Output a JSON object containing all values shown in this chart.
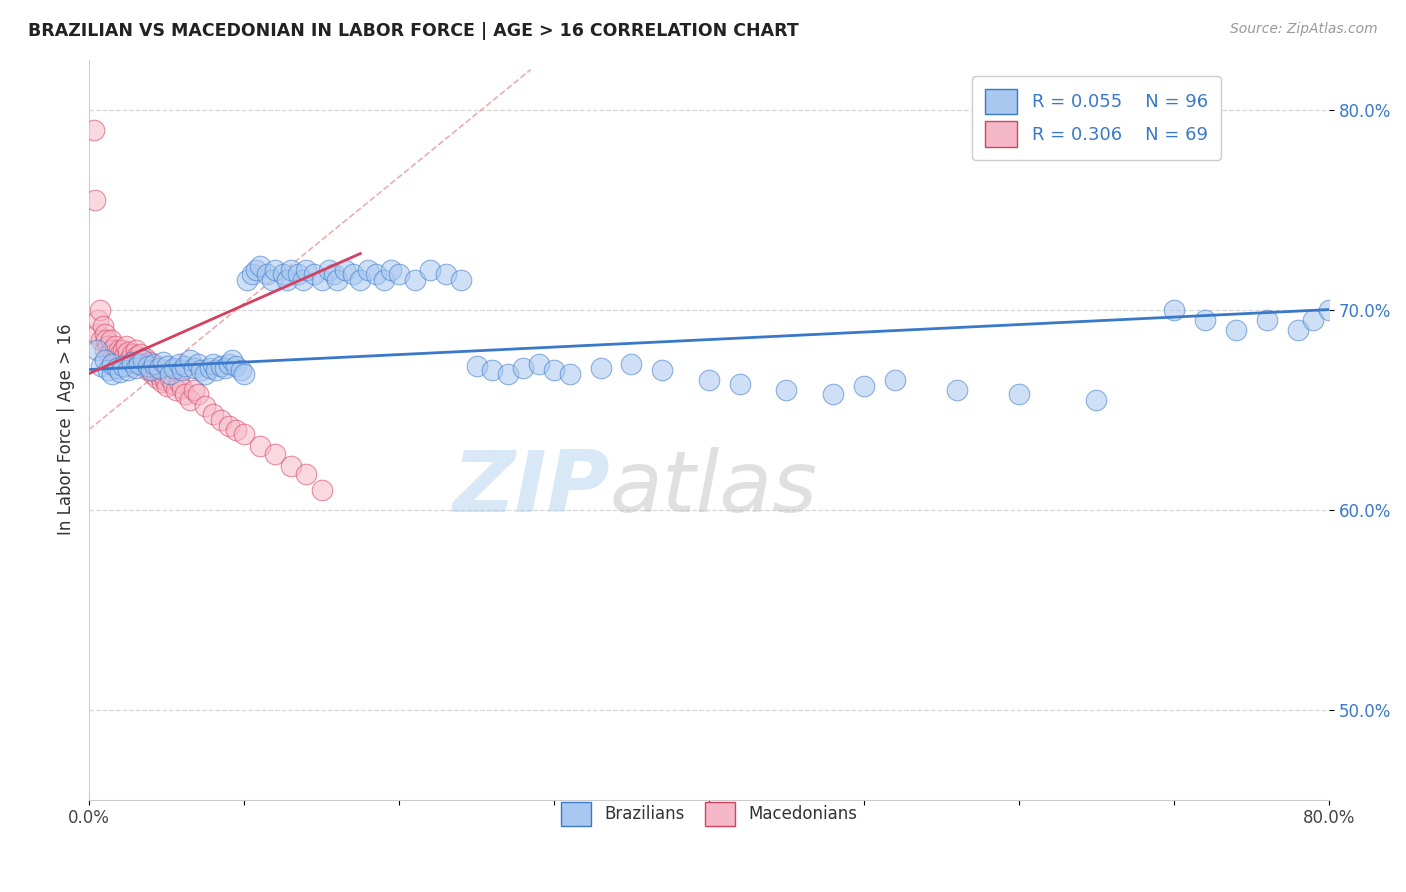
{
  "title": "BRAZILIAN VS MACEDONIAN IN LABOR FORCE | AGE > 16 CORRELATION CHART",
  "source_text": "Source: ZipAtlas.com",
  "ylabel": "In Labor Force | Age > 16",
  "xlim": [
    0.0,
    0.8
  ],
  "ylim": [
    0.455,
    0.825
  ],
  "legend_R1": "R = 0.055",
  "legend_N1": "N = 96",
  "legend_R2": "R = 0.306",
  "legend_N2": "N = 69",
  "color_blue": "#A8C8F0",
  "color_pink": "#F5B8C8",
  "color_blue_line": "#3A78C9",
  "color_pink_line": "#D44060",
  "color_ref_line": "#E8A0A0",
  "watermark_zip": "ZIP",
  "watermark_atlas": "atlas",
  "background": "#FFFFFF",
  "grid_color": "#CCCCCC",
  "title_color": "#222222",
  "blue_scatter_x": [
    0.005,
    0.008,
    0.01,
    0.012,
    0.015,
    0.015,
    0.018,
    0.02,
    0.022,
    0.025,
    0.028,
    0.03,
    0.032,
    0.035,
    0.038,
    0.04,
    0.042,
    0.045,
    0.048,
    0.05,
    0.052,
    0.055,
    0.058,
    0.06,
    0.062,
    0.065,
    0.068,
    0.07,
    0.072,
    0.075,
    0.078,
    0.08,
    0.082,
    0.085,
    0.088,
    0.09,
    0.092,
    0.095,
    0.098,
    0.1,
    0.102,
    0.105,
    0.108,
    0.11,
    0.115,
    0.118,
    0.12,
    0.125,
    0.128,
    0.13,
    0.135,
    0.138,
    0.14,
    0.145,
    0.15,
    0.155,
    0.158,
    0.16,
    0.165,
    0.17,
    0.175,
    0.18,
    0.185,
    0.19,
    0.195,
    0.2,
    0.21,
    0.22,
    0.23,
    0.24,
    0.25,
    0.26,
    0.27,
    0.28,
    0.29,
    0.3,
    0.31,
    0.33,
    0.35,
    0.37,
    0.4,
    0.42,
    0.45,
    0.48,
    0.5,
    0.52,
    0.56,
    0.6,
    0.65,
    0.7,
    0.72,
    0.74,
    0.76,
    0.78,
    0.79,
    0.8
  ],
  "blue_scatter_y": [
    0.68,
    0.672,
    0.675,
    0.67,
    0.668,
    0.673,
    0.671,
    0.669,
    0.672,
    0.67,
    0.674,
    0.671,
    0.673,
    0.675,
    0.672,
    0.67,
    0.673,
    0.671,
    0.674,
    0.672,
    0.668,
    0.671,
    0.673,
    0.67,
    0.672,
    0.675,
    0.671,
    0.673,
    0.67,
    0.668,
    0.671,
    0.673,
    0.67,
    0.672,
    0.671,
    0.673,
    0.675,
    0.672,
    0.67,
    0.668,
    0.715,
    0.718,
    0.72,
    0.722,
    0.718,
    0.715,
    0.72,
    0.718,
    0.715,
    0.72,
    0.718,
    0.715,
    0.72,
    0.718,
    0.715,
    0.72,
    0.718,
    0.715,
    0.72,
    0.718,
    0.715,
    0.72,
    0.718,
    0.715,
    0.72,
    0.718,
    0.715,
    0.72,
    0.718,
    0.715,
    0.672,
    0.67,
    0.668,
    0.671,
    0.673,
    0.67,
    0.668,
    0.671,
    0.673,
    0.67,
    0.665,
    0.663,
    0.66,
    0.658,
    0.662,
    0.665,
    0.66,
    0.658,
    0.655,
    0.7,
    0.695,
    0.69,
    0.695,
    0.69,
    0.695,
    0.7
  ],
  "pink_scatter_x": [
    0.003,
    0.004,
    0.005,
    0.006,
    0.007,
    0.008,
    0.009,
    0.01,
    0.01,
    0.011,
    0.012,
    0.013,
    0.014,
    0.015,
    0.016,
    0.017,
    0.018,
    0.019,
    0.02,
    0.021,
    0.022,
    0.023,
    0.024,
    0.025,
    0.026,
    0.027,
    0.028,
    0.029,
    0.03,
    0.031,
    0.032,
    0.033,
    0.034,
    0.035,
    0.036,
    0.037,
    0.038,
    0.039,
    0.04,
    0.041,
    0.042,
    0.043,
    0.044,
    0.045,
    0.046,
    0.047,
    0.048,
    0.049,
    0.05,
    0.052,
    0.054,
    0.056,
    0.058,
    0.06,
    0.062,
    0.065,
    0.068,
    0.07,
    0.075,
    0.08,
    0.085,
    0.09,
    0.095,
    0.1,
    0.11,
    0.12,
    0.13,
    0.14,
    0.15
  ],
  "pink_scatter_y": [
    0.79,
    0.755,
    0.688,
    0.695,
    0.7,
    0.685,
    0.692,
    0.68,
    0.688,
    0.685,
    0.682,
    0.678,
    0.685,
    0.68,
    0.678,
    0.682,
    0.675,
    0.68,
    0.678,
    0.675,
    0.68,
    0.678,
    0.682,
    0.679,
    0.675,
    0.672,
    0.678,
    0.675,
    0.68,
    0.677,
    0.674,
    0.678,
    0.675,
    0.672,
    0.676,
    0.673,
    0.67,
    0.674,
    0.671,
    0.668,
    0.672,
    0.669,
    0.666,
    0.67,
    0.667,
    0.664,
    0.668,
    0.665,
    0.662,
    0.666,
    0.663,
    0.66,
    0.664,
    0.661,
    0.658,
    0.655,
    0.66,
    0.658,
    0.652,
    0.648,
    0.645,
    0.642,
    0.64,
    0.638,
    0.632,
    0.628,
    0.622,
    0.618,
    0.61
  ],
  "blue_line_x": [
    0.0,
    0.8
  ],
  "blue_line_y": [
    0.67,
    0.7
  ],
  "pink_line_x": [
    0.0,
    0.175
  ],
  "pink_line_y": [
    0.668,
    0.728
  ],
  "ref_line_x": [
    0.0,
    0.285
  ],
  "ref_line_y": [
    0.64,
    0.82
  ]
}
